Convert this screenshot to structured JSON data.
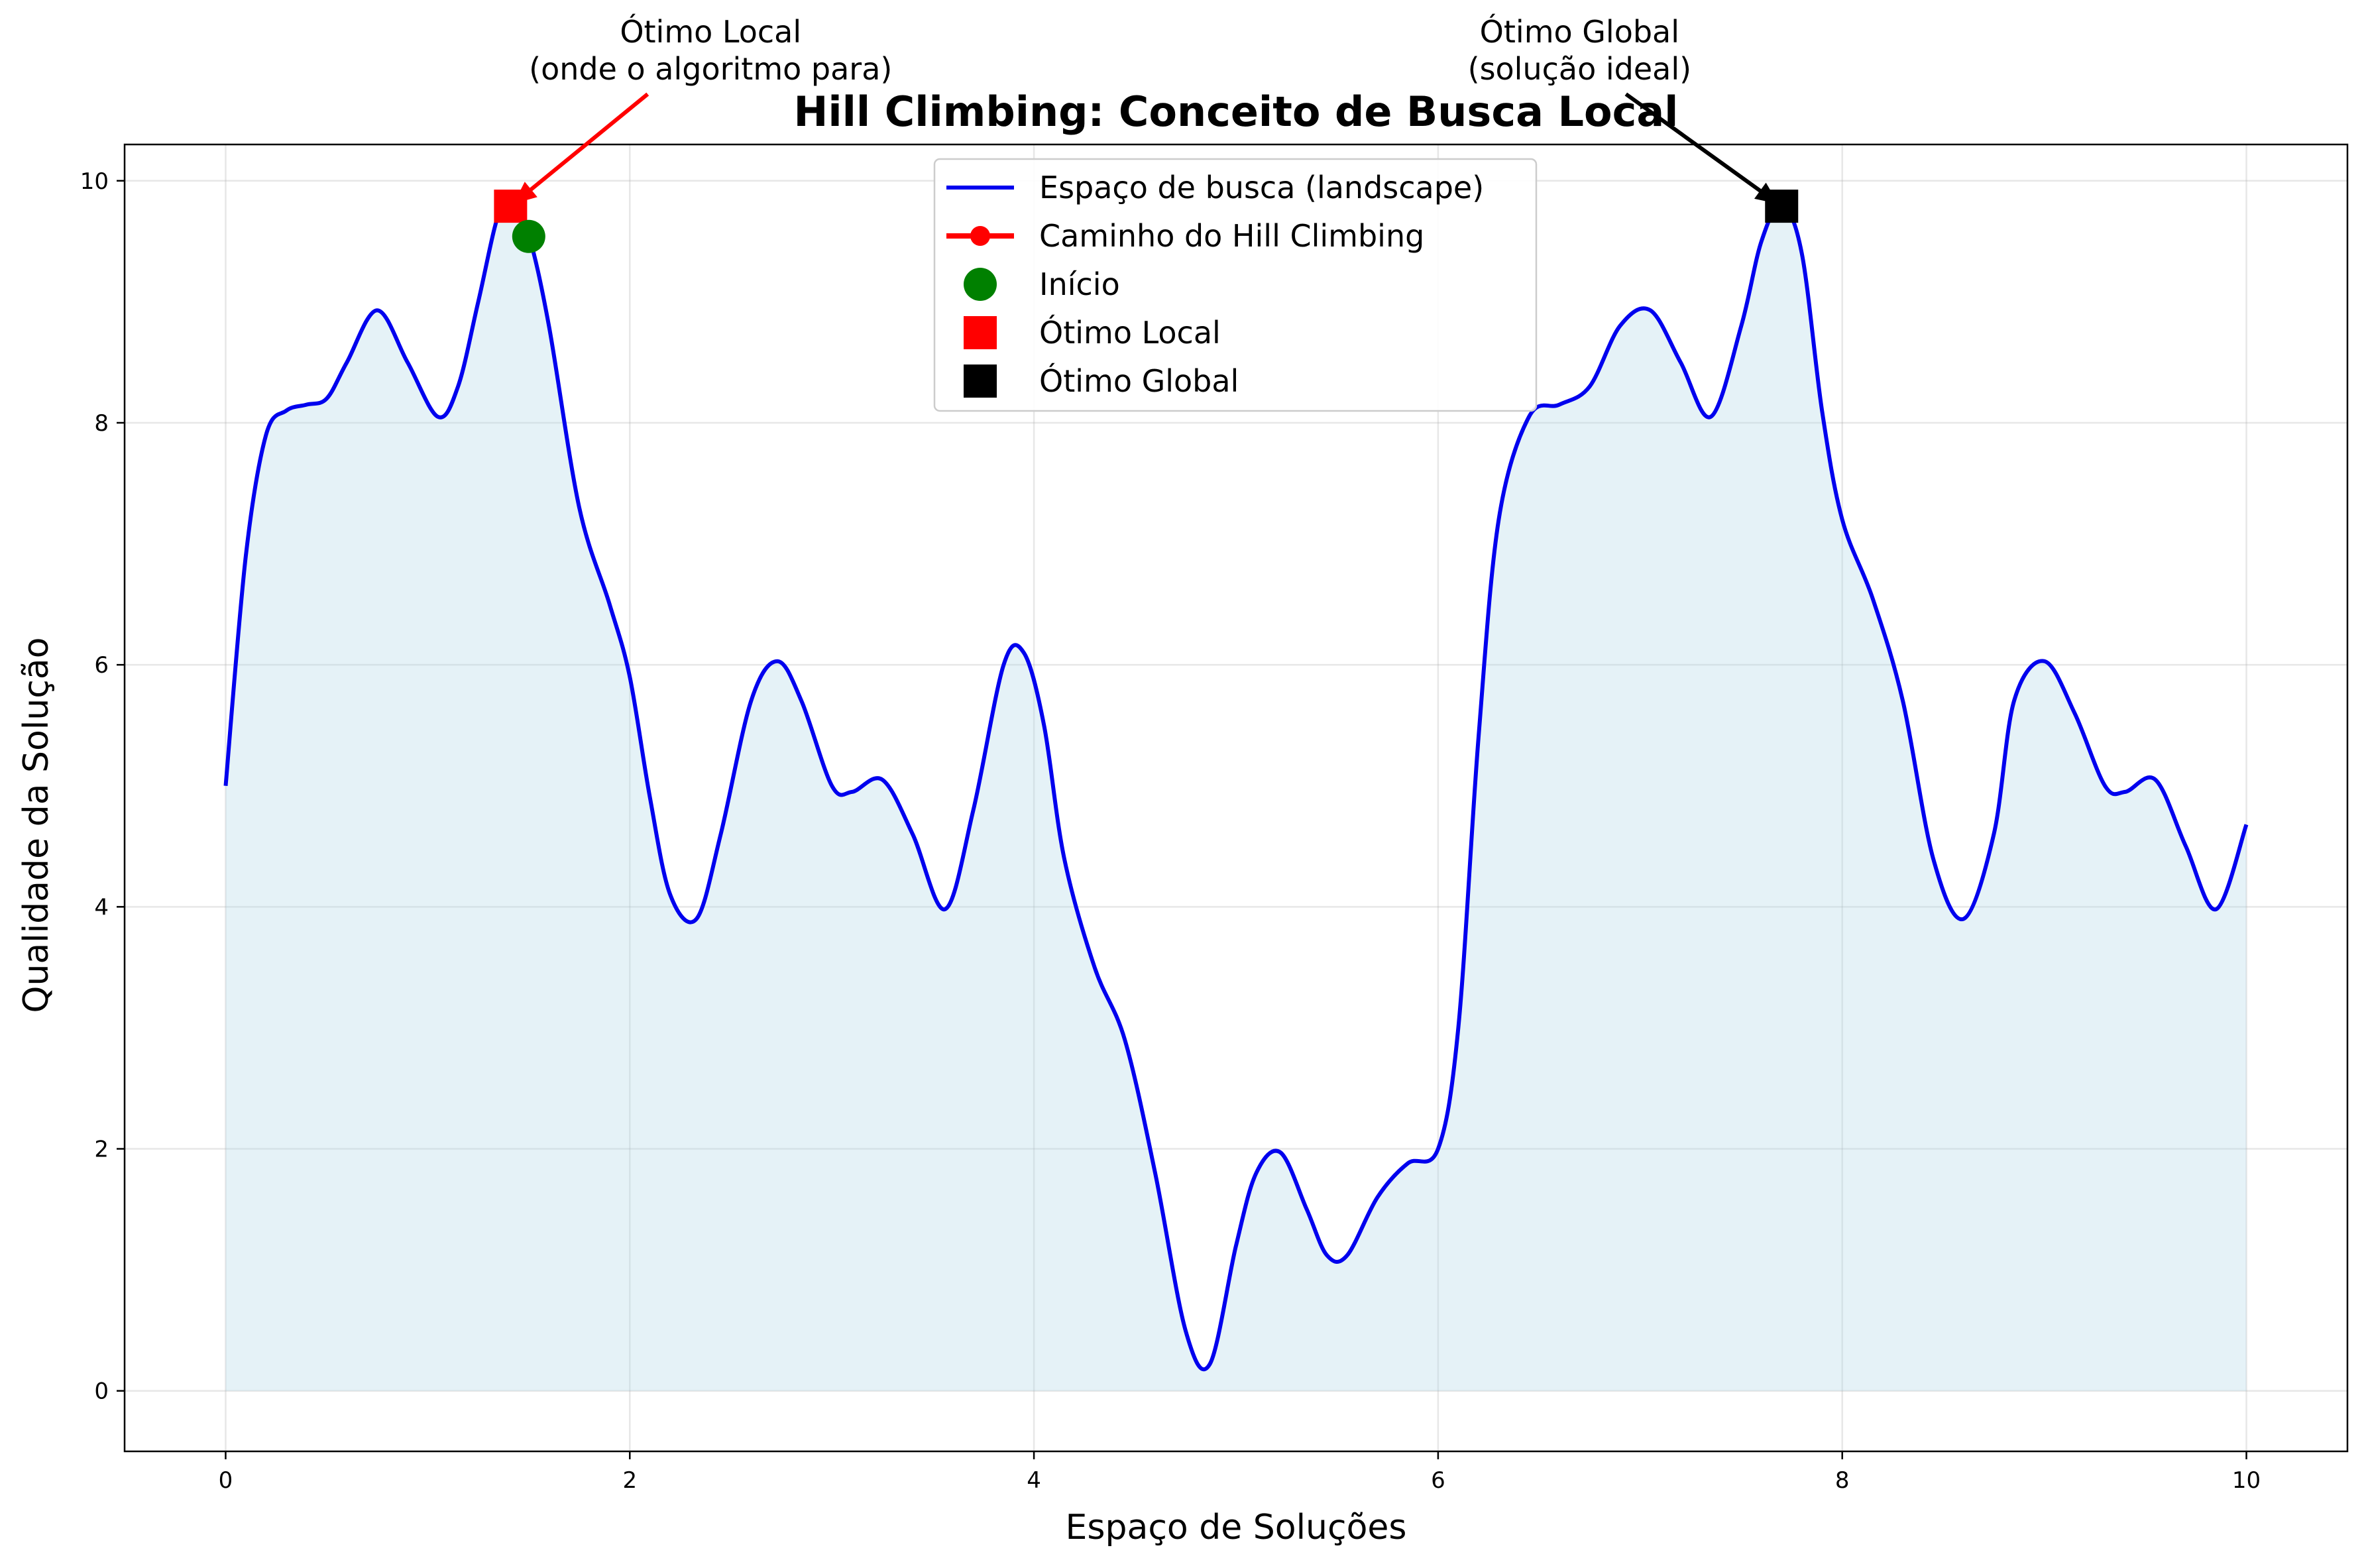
{
  "chart_data": {
    "type": "line",
    "title": "Hill Climbing: Conceito de Busca Local",
    "xlabel": "Espaço de Soluções",
    "ylabel": "Qualidade da Solução",
    "xlim": [
      -0.5,
      10.5
    ],
    "ylim": [
      -0.5,
      10.3
    ],
    "xticks": [
      0,
      2,
      4,
      6,
      8,
      10
    ],
    "yticks": [
      0,
      2,
      4,
      6,
      8,
      10
    ],
    "grid": true,
    "legend_position": "top-center",
    "colors": {
      "landscape": "#0000ee",
      "fill": "#add8e6",
      "path": "#ff0000",
      "start": "#008000",
      "local": "#ff0000",
      "global": "#000000"
    },
    "series": [
      {
        "name": "Espaço de busca (landscape)",
        "type": "line",
        "x": [
          0,
          0.1,
          0.2,
          0.3,
          0.4,
          0.5,
          0.6,
          0.75,
          0.9,
          1.05,
          1.15,
          1.25,
          1.35,
          1.42,
          1.5,
          1.6,
          1.75,
          1.9,
          2.0,
          2.1,
          2.2,
          2.33,
          2.45,
          2.6,
          2.73,
          2.85,
          3.0,
          3.1,
          3.25,
          3.4,
          3.56,
          3.7,
          3.85,
          3.95,
          4.05,
          4.15,
          4.3,
          4.45,
          4.6,
          4.75,
          4.87,
          5.0,
          5.1,
          5.22,
          5.35,
          5.45,
          5.55,
          5.7,
          5.85,
          6.0,
          6.1,
          6.2,
          6.3,
          6.45,
          6.6,
          6.75,
          6.9,
          7.05,
          7.2,
          7.35,
          7.5,
          7.6,
          7.7,
          7.8,
          7.9,
          8.0,
          8.15,
          8.3,
          8.45,
          8.6,
          8.75,
          8.85,
          9.0,
          9.15,
          9.3,
          9.4,
          9.55,
          9.7,
          9.85,
          10.0
        ],
        "y": [
          5.0,
          6.9,
          7.9,
          8.1,
          8.15,
          8.2,
          8.5,
          8.93,
          8.5,
          8.05,
          8.3,
          9.0,
          9.72,
          9.8,
          9.55,
          8.8,
          7.3,
          6.5,
          5.9,
          4.9,
          4.1,
          3.9,
          4.6,
          5.7,
          6.03,
          5.7,
          5.0,
          4.95,
          5.05,
          4.6,
          3.98,
          4.8,
          6.0,
          6.1,
          5.5,
          4.4,
          3.5,
          2.9,
          1.8,
          0.5,
          0.22,
          1.2,
          1.8,
          1.97,
          1.5,
          1.12,
          1.12,
          1.6,
          1.88,
          2.0,
          3.0,
          5.4,
          7.2,
          8.05,
          8.15,
          8.3,
          8.8,
          8.93,
          8.5,
          8.05,
          8.8,
          9.5,
          9.8,
          9.4,
          8.1,
          7.2,
          6.55,
          5.7,
          4.4,
          3.9,
          4.6,
          5.7,
          6.03,
          5.6,
          5.0,
          4.95,
          5.05,
          4.5,
          3.98,
          4.68
        ]
      },
      {
        "name": "Caminho do Hill Climbing",
        "type": "line-marker",
        "x": [],
        "y": []
      },
      {
        "name": "Início",
        "type": "point",
        "x": [
          1.5
        ],
        "y": [
          9.54
        ]
      },
      {
        "name": "Ótimo Local",
        "type": "point",
        "x": [
          1.41
        ],
        "y": [
          9.79
        ]
      },
      {
        "name": "Ótimo Global",
        "type": "point",
        "x": [
          7.7
        ],
        "y": [
          9.79
        ]
      }
    ],
    "annotations": [
      {
        "lines": [
          "Ótimo Local",
          "(onde o algoritmo para)"
        ],
        "target": [
          1.41,
          9.79
        ],
        "text_at": [
          2.4,
          10.9
        ],
        "color": "#ff0000"
      },
      {
        "lines": [
          "Ótimo Global",
          "(solução ideal)"
        ],
        "target": [
          7.7,
          9.79
        ],
        "text_at": [
          6.7,
          10.9
        ],
        "color": "#000000"
      }
    ]
  }
}
